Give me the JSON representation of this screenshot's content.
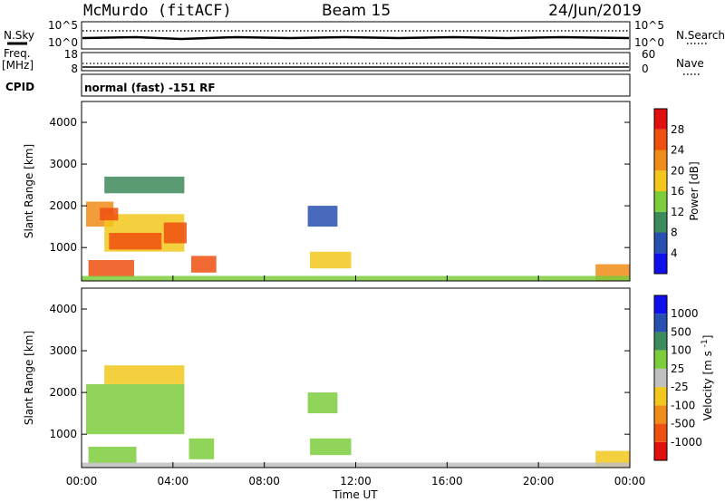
{
  "header": {
    "station": "McMurdo (fitACF)",
    "beam": "Beam 15",
    "date": "24/Jun/2019"
  },
  "status_panels": {
    "nsky_label": "N.Sky",
    "nsky_ticks": [
      "10^5",
      "10^0"
    ],
    "nsearch_label": "N.Search",
    "nsearch_ticks": [
      "10^5",
      "10^0"
    ],
    "freq_label_top": "Freq.",
    "freq_label_unit": "[MHz]",
    "freq_ticks": [
      "18",
      "8"
    ],
    "nave_label": "Nave",
    "nave_ticks": [
      "60",
      "0"
    ],
    "cpid_label": "CPID",
    "cpid_text": "normal (fast) -151 RF"
  },
  "axes": {
    "xlabel": "Time UT",
    "x_ticks": [
      "00:00",
      "04:00",
      "08:00",
      "12:00",
      "16:00",
      "20:00",
      "00:00"
    ],
    "ylabel": "Slant Range [km]",
    "y_ticks": [
      "1000",
      "2000",
      "3000",
      "4000"
    ]
  },
  "colors": {
    "power": [
      "#1010ee",
      "#2850b0",
      "#3d8a5a",
      "#7ccd3c",
      "#f2c81c",
      "#f08c18",
      "#ee5010",
      "#e01010"
    ],
    "velocity": [
      "#e01010",
      "#ee5010",
      "#f08c18",
      "#f2c81c",
      "#c0c0c0",
      "#7ccd3c",
      "#3d8a5a",
      "#2850b0",
      "#1010ee"
    ]
  },
  "chart_data": [
    {
      "type": "heatmap",
      "name": "power",
      "ylabel": "Slant Range [km]",
      "xlabel": "",
      "xlim": [
        0,
        24
      ],
      "ylim": [
        200,
        4500
      ],
      "colorbar": {
        "label": "Power [dB]",
        "ticks": [
          "4",
          "8",
          "12",
          "16",
          "20",
          "24",
          "28"
        ],
        "range": [
          0,
          32
        ]
      },
      "regions": [
        {
          "t0": 0.2,
          "t1": 1.4,
          "r0": 1500,
          "r1": 2100,
          "value": 22
        },
        {
          "t0": 1.0,
          "t1": 4.5,
          "r0": 900,
          "r1": 1800,
          "value": 18
        },
        {
          "t0": 1.2,
          "t1": 3.5,
          "r0": 950,
          "r1": 1350,
          "value": 27
        },
        {
          "t0": 0.8,
          "t1": 1.6,
          "r0": 1650,
          "r1": 1950,
          "value": 26
        },
        {
          "t0": 3.6,
          "t1": 4.6,
          "r0": 1100,
          "r1": 1600,
          "value": 25
        },
        {
          "t0": 1.0,
          "t1": 4.5,
          "r0": 2300,
          "r1": 2700,
          "value": 10
        },
        {
          "t0": 0.3,
          "t1": 2.3,
          "r0": 300,
          "r1": 700,
          "value": 24
        },
        {
          "t0": 4.8,
          "t1": 5.9,
          "r0": 400,
          "r1": 800,
          "value": 26
        },
        {
          "t0": 9.9,
          "t1": 11.2,
          "r0": 1500,
          "r1": 2000,
          "value": 6
        },
        {
          "t0": 10.0,
          "t1": 11.8,
          "r0": 500,
          "r1": 900,
          "value": 16
        },
        {
          "t0": 22.5,
          "t1": 24.0,
          "r0": 200,
          "r1": 600,
          "value": 20
        },
        {
          "t0": 0.0,
          "t1": 24.0,
          "r0": 200,
          "r1": 320,
          "value": 12
        }
      ]
    },
    {
      "type": "heatmap",
      "name": "velocity",
      "ylabel": "Slant Range [km]",
      "xlabel": "Time UT",
      "xlim": [
        0,
        24
      ],
      "ylim": [
        200,
        4500
      ],
      "colorbar": {
        "label": "Velocity [m s^-1]",
        "ticks": [
          "-1000",
          "-500",
          "-100",
          "-25",
          "25",
          "100",
          "500",
          "1000"
        ],
        "range": [
          -1500,
          1500
        ]
      },
      "regions": [
        {
          "t0": 0.2,
          "t1": 4.5,
          "r0": 1000,
          "r1": 2200,
          "value": 200
        },
        {
          "t0": 1.0,
          "t1": 4.5,
          "r0": 2200,
          "r1": 2650,
          "value": -200
        },
        {
          "t0": 0.3,
          "t1": 2.4,
          "r0": 300,
          "r1": 700,
          "value": 200
        },
        {
          "t0": 4.7,
          "t1": 5.8,
          "r0": 400,
          "r1": 900,
          "value": 200
        },
        {
          "t0": 9.9,
          "t1": 11.2,
          "r0": 1500,
          "r1": 2000,
          "value": 200
        },
        {
          "t0": 10.0,
          "t1": 11.8,
          "r0": 500,
          "r1": 900,
          "value": 200
        },
        {
          "t0": 22.5,
          "t1": 24.0,
          "r0": 200,
          "r1": 600,
          "value": -200
        },
        {
          "t0": 0.0,
          "t1": 24.0,
          "r0": 200,
          "r1": 320,
          "value": -80
        }
      ]
    }
  ]
}
